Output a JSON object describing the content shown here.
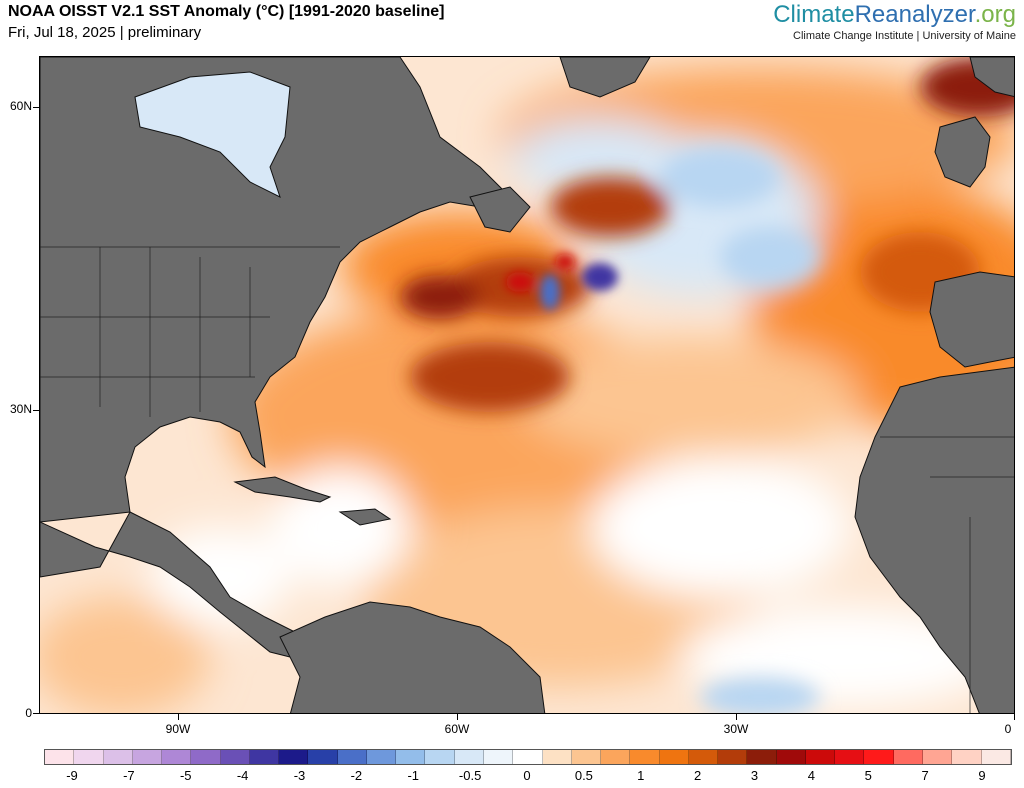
{
  "header": {
    "title": "NOAA OISST V2.1 SST Anomaly (°C) [1991-2020 baseline]",
    "subtitle": "Fri, Jul 18, 2025 | preliminary",
    "brand_part1": "Climate",
    "brand_part2": "Reanalyzer",
    "brand_part3": ".org",
    "institution": "Climate Change Institute | University of Maine"
  },
  "map": {
    "lat_labels": [
      "60N",
      "30N",
      "0"
    ],
    "lon_labels": [
      "90W",
      "60W",
      "30W",
      "0"
    ],
    "land_color": "#6b6b6b"
  },
  "colorbar": {
    "colors": [
      "#fde3ea",
      "#f0d6ee",
      "#dcc0e8",
      "#c7a5e0",
      "#ae87d6",
      "#8f6ac8",
      "#6a50b6",
      "#3f36a2",
      "#1c1a8a",
      "#2840a8",
      "#4a6fc8",
      "#6e98dc",
      "#93bdea",
      "#b8d6f2",
      "#d8e8f7",
      "#eef5fb",
      "#ffffff",
      "#fde1c4",
      "#fcc591",
      "#fba55c",
      "#f98a2c",
      "#ef7410",
      "#d45a0a",
      "#b33c0a",
      "#8c1d0a",
      "#a00a0a",
      "#cc0a0a",
      "#e60f14",
      "#ff1a1a",
      "#ff6a60",
      "#ffa593",
      "#ffd2c4",
      "#fbe9e4"
    ],
    "labels": [
      "-9",
      "-7",
      "-5",
      "-4",
      "-3",
      "-2",
      "-1",
      "-0.5",
      "0",
      "0.5",
      "1",
      "2",
      "3",
      "4",
      "5",
      "7",
      "9"
    ]
  }
}
